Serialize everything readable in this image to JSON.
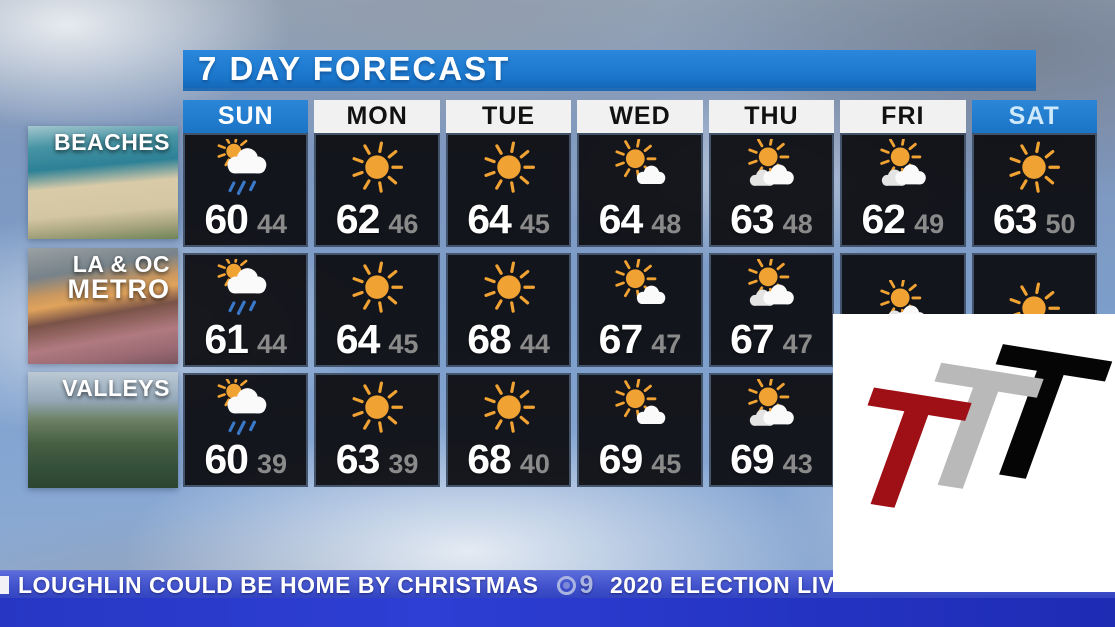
{
  "title": "7 DAY FORECAST",
  "days": [
    {
      "label": "SUN",
      "weekend": true
    },
    {
      "label": "MON",
      "weekend": false
    },
    {
      "label": "TUE",
      "weekend": false
    },
    {
      "label": "WED",
      "weekend": false
    },
    {
      "label": "THU",
      "weekend": false
    },
    {
      "label": "FRI",
      "weekend": false
    },
    {
      "label": "SAT",
      "weekend": true
    }
  ],
  "regions": [
    {
      "name": "beaches",
      "label_lines": [
        "BEACHES"
      ],
      "cells": [
        {
          "icon": "rain-sun",
          "hi": "60",
          "lo": "44"
        },
        {
          "icon": "sunny",
          "hi": "62",
          "lo": "46"
        },
        {
          "icon": "sunny",
          "hi": "64",
          "lo": "45"
        },
        {
          "icon": "mostly-sunny",
          "hi": "64",
          "lo": "48"
        },
        {
          "icon": "partly-cloudy",
          "hi": "63",
          "lo": "48"
        },
        {
          "icon": "partly-cloudy",
          "hi": "62",
          "lo": "49"
        },
        {
          "icon": "sunny",
          "hi": "63",
          "lo": "50"
        }
      ]
    },
    {
      "name": "metro",
      "label_lines": [
        "LA & OC",
        "METRO"
      ],
      "cells": [
        {
          "icon": "rain-sun",
          "hi": "61",
          "lo": "44"
        },
        {
          "icon": "sunny",
          "hi": "64",
          "lo": "45"
        },
        {
          "icon": "sunny",
          "hi": "68",
          "lo": "44"
        },
        {
          "icon": "mostly-sunny",
          "hi": "67",
          "lo": "47"
        },
        {
          "icon": "partly-cloudy",
          "hi": "67",
          "lo": "47"
        },
        {
          "icon": "partly-cloudy",
          "hi": "",
          "lo": ""
        },
        {
          "icon": "sunny",
          "hi": "",
          "lo": ""
        }
      ]
    },
    {
      "name": "valleys",
      "label_lines": [
        "VALLEYS"
      ],
      "cells": [
        {
          "icon": "rain-sun",
          "hi": "60",
          "lo": "39"
        },
        {
          "icon": "sunny",
          "hi": "63",
          "lo": "39"
        },
        {
          "icon": "sunny",
          "hi": "68",
          "lo": "40"
        },
        {
          "icon": "mostly-sunny",
          "hi": "69",
          "lo": "45"
        },
        {
          "icon": "partly-cloudy",
          "hi": "69",
          "lo": "43"
        },
        {
          "icon": null,
          "hi": "",
          "lo": ""
        },
        {
          "icon": null,
          "hi": "",
          "lo": ""
        }
      ]
    }
  ],
  "ticker": {
    "headline": "LOUGHLIN COULD BE HOME BY CHRISTMAS",
    "station_badge": "9",
    "headline_next": "2020 ELECTION LIV"
  },
  "logo": {
    "letters": [
      "T",
      "T",
      "T"
    ],
    "colors": [
      "#9e1016",
      "#b9b9b9",
      "#050505"
    ]
  },
  "colors": {
    "title_bar": "#1b77cc",
    "weekend_header": "#2080d4",
    "weekday_header": "#f1f1f1",
    "cell_bg": "#0d0d11",
    "hi_temp": "#ffffff",
    "lo_temp": "#8a8a8a",
    "sun": "#f0a232",
    "cloud": "#fafafa",
    "rain": "#3a78c8",
    "ticker_band": "#4152cc",
    "ticker_lower": "#2737c4"
  },
  "chart_data": {
    "type": "table",
    "title": "7 DAY FORECAST",
    "columns": [
      "SUN",
      "MON",
      "TUE",
      "WED",
      "THU",
      "FRI",
      "SAT"
    ],
    "rows": [
      {
        "region": "BEACHES",
        "high": [
          60,
          62,
          64,
          64,
          63,
          62,
          63
        ],
        "low": [
          44,
          46,
          45,
          48,
          48,
          49,
          50
        ],
        "conditions": [
          "rain-sun",
          "sunny",
          "sunny",
          "mostly-sunny",
          "partly-cloudy",
          "partly-cloudy",
          "sunny"
        ]
      },
      {
        "region": "LA & OC METRO",
        "high": [
          61,
          64,
          68,
          67,
          67,
          null,
          null
        ],
        "low": [
          44,
          45,
          44,
          47,
          47,
          null,
          null
        ],
        "conditions": [
          "rain-sun",
          "sunny",
          "sunny",
          "mostly-sunny",
          "partly-cloudy",
          "partly-cloudy",
          "sunny"
        ]
      },
      {
        "region": "VALLEYS",
        "high": [
          60,
          63,
          68,
          69,
          69,
          null,
          null
        ],
        "low": [
          39,
          39,
          40,
          45,
          43,
          null,
          null
        ],
        "conditions": [
          "rain-sun",
          "sunny",
          "sunny",
          "mostly-sunny",
          "partly-cloudy",
          null,
          null
        ]
      }
    ]
  }
}
